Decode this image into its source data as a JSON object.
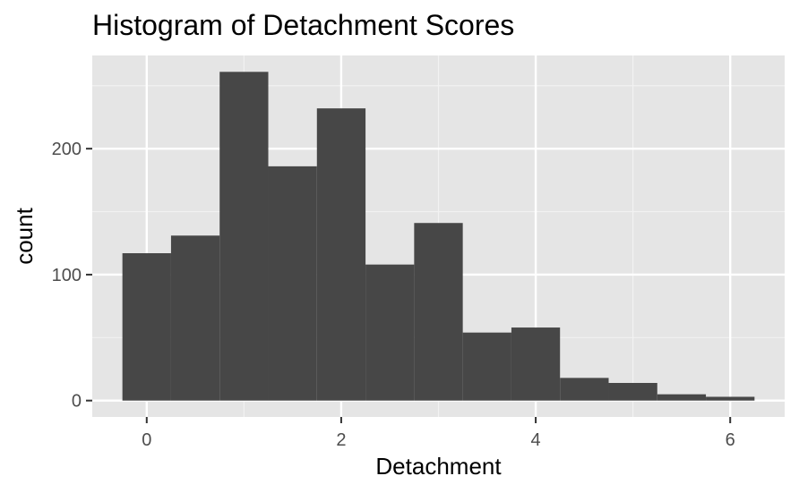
{
  "chart_data": {
    "type": "bar",
    "title": "Histogram of Detachment Scores",
    "xlabel": "Detachment",
    "ylabel": "count",
    "bin_width": 0.5,
    "bins": [
      {
        "x0": -0.25,
        "x1": 0.25,
        "count": 117
      },
      {
        "x0": 0.25,
        "x1": 0.75,
        "count": 131
      },
      {
        "x0": 0.75,
        "x1": 1.25,
        "count": 261
      },
      {
        "x0": 1.25,
        "x1": 1.75,
        "count": 186
      },
      {
        "x0": 1.75,
        "x1": 2.25,
        "count": 232
      },
      {
        "x0": 2.25,
        "x1": 2.75,
        "count": 108
      },
      {
        "x0": 2.75,
        "x1": 3.25,
        "count": 141
      },
      {
        "x0": 3.25,
        "x1": 3.75,
        "count": 54
      },
      {
        "x0": 3.75,
        "x1": 4.25,
        "count": 58
      },
      {
        "x0": 4.25,
        "x1": 4.75,
        "count": 18
      },
      {
        "x0": 4.75,
        "x1": 5.25,
        "count": 14
      },
      {
        "x0": 5.25,
        "x1": 5.75,
        "count": 5
      },
      {
        "x0": 5.75,
        "x1": 6.25,
        "count": 3
      }
    ],
    "xlim": [
      -0.56,
      6.56
    ],
    "ylim": [
      -13,
      274
    ],
    "x_ticks": [
      0,
      2,
      4,
      6
    ],
    "x_minor_ticks": [
      1,
      3,
      5
    ],
    "y_ticks": [
      0,
      100,
      200
    ],
    "y_minor_ticks": [
      50,
      150,
      250
    ],
    "grid": true,
    "legend": "none",
    "colors": {
      "bar_fill": "#474747",
      "panel_background": "#e5e5e5",
      "grid_major": "#ffffff",
      "grid_minor": "#f2f2f2",
      "tick_mark": "#333333",
      "tick_label": "#4d4d4d"
    }
  }
}
